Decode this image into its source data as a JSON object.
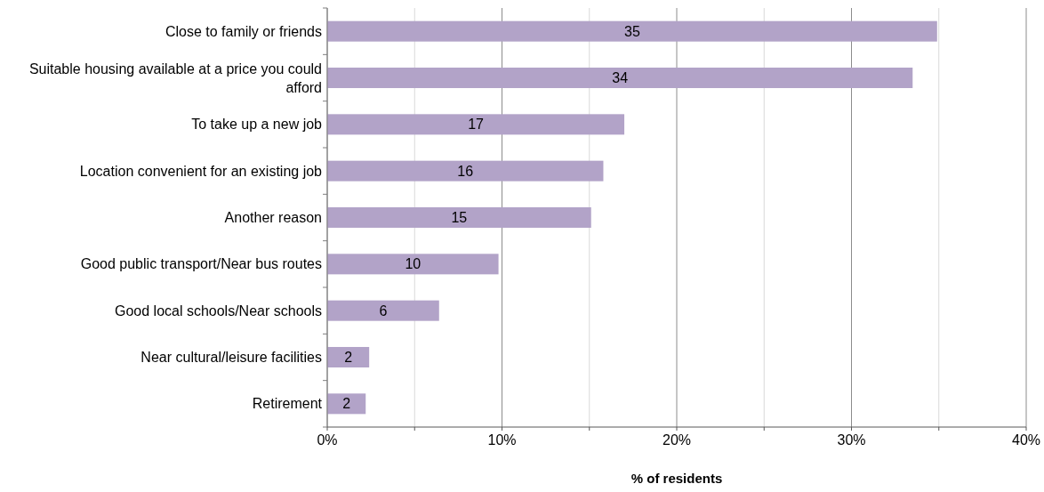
{
  "chart_data": {
    "type": "bar",
    "orientation": "horizontal",
    "categories": [
      "Close to family or friends",
      "Suitable housing available at a price you could afford",
      "To take up a new job",
      "Location convenient for an existing job",
      "Another reason",
      "Good public transport/Near bus routes",
      "Good local schools/Near schools",
      "Near cultural/leisure facilities",
      "Retirement"
    ],
    "values": [
      34.9,
      33.5,
      17.0,
      15.8,
      15.1,
      9.8,
      6.4,
      2.4,
      2.2
    ],
    "value_labels": [
      "35",
      "34",
      "17",
      "16",
      "15",
      "10",
      "6",
      "2",
      "2"
    ],
    "color": "#b2a3c8",
    "xlabel": "% of residents",
    "xlim": [
      0,
      40
    ],
    "xticks": [
      {
        "value": 0,
        "label": "0%"
      },
      {
        "value": 5,
        "label": null
      },
      {
        "value": 10,
        "label": "10%"
      },
      {
        "value": 15,
        "label": null
      },
      {
        "value": 20,
        "label": "20%"
      },
      {
        "value": 25,
        "label": null
      },
      {
        "value": 30,
        "label": "30%"
      },
      {
        "value": 35,
        "label": null
      },
      {
        "value": 40,
        "label": "40%"
      }
    ],
    "grid": "x"
  }
}
